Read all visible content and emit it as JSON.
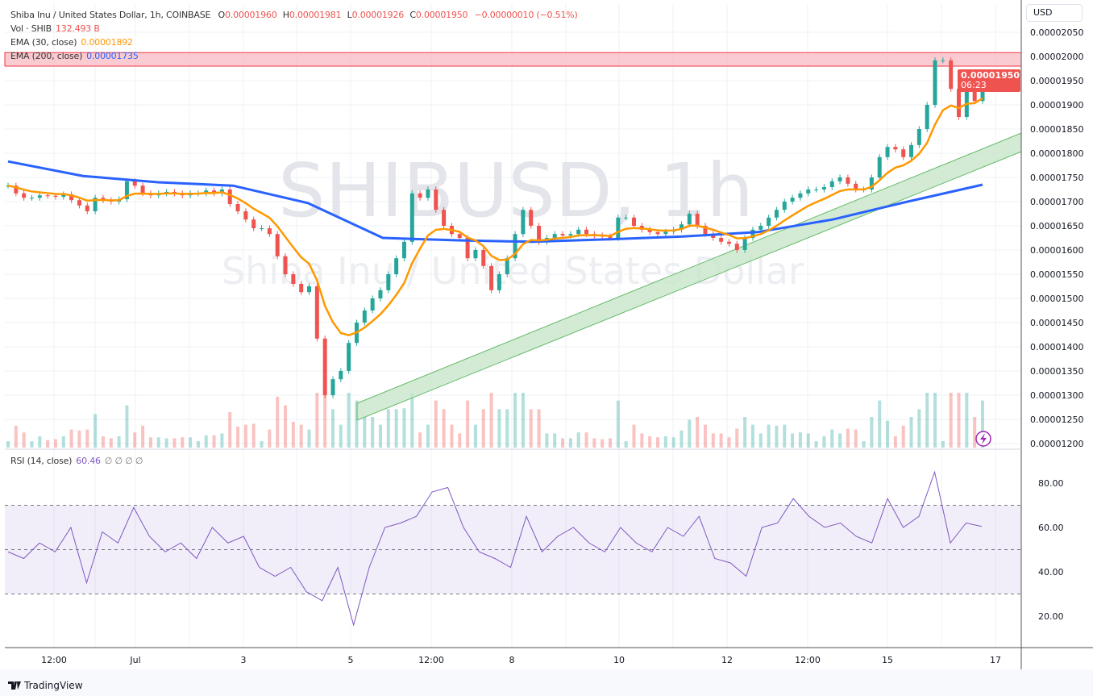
{
  "header": {
    "symbol_line": "Shiba Inu / United States Dollar, 1h, COINBASE",
    "open_label": "O",
    "open": "0.00001960",
    "high_label": "H",
    "high": "0.00001981",
    "low_label": "L",
    "low": "0.00001926",
    "close_label": "C",
    "close": "0.00001950",
    "change": "−0.00000010 (−0.51%)",
    "volume_label": "Vol · SHIB",
    "volume": "132.493 B",
    "ema30_label": "EMA (30, close)",
    "ema30_value": "0.00001892",
    "ema200_label": "EMA (200, close)",
    "ema200_value": "0.00001735",
    "rsi_label": "RSI (14, close)",
    "rsi_value": "60.46",
    "rsi_extra": "∅ ∅ ∅ ∅"
  },
  "currency_button": "USD",
  "last_price": {
    "value": "0.00001950",
    "countdown": "06:23"
  },
  "watermark": {
    "line1": "SHIBUSD, 1h",
    "line2": "Shiba Inu / United States Dollar"
  },
  "footer": {
    "brand": "TradingView"
  },
  "icons": {
    "lightning": "lightning-icon",
    "logo": "tradingview-logo"
  },
  "colors": {
    "up": "#26a69a",
    "down": "#ef5350",
    "ema30": "#ff9800",
    "ema200": "#2962ff",
    "rsi": "#7e57c2",
    "resistance_zone": "#f8bbc2",
    "channel": "#c8e6c9"
  },
  "chart_data": [
    {
      "type": "candlestick",
      "title": "Shiba Inu / United States Dollar, 1h, COINBASE",
      "y_ticks": [
        "0.00002050",
        "0.00002000",
        "0.00001950",
        "0.00001900",
        "0.00001850",
        "0.00001800",
        "0.00001750",
        "0.00001700",
        "0.00001650",
        "0.00001600",
        "0.00001550",
        "0.00001500",
        "0.00001450",
        "0.00001400",
        "0.00001350",
        "0.00001300",
        "0.00001250",
        "0.00001200"
      ],
      "ylim": [
        1.2e-05,
        2.06e-05
      ],
      "x_ticks": [
        "12:00",
        "Jul",
        "3",
        "5",
        "12:00",
        "8",
        "10",
        "12",
        "12:00",
        "15",
        "17"
      ],
      "grid": true,
      "close": [
        1.733e-05,
        1.717e-05,
        1.708e-05,
        1.708e-05,
        1.713e-05,
        1.712e-05,
        1.71e-05,
        1.715e-05,
        1.703e-05,
        1.692e-05,
        1.68e-05,
        1.708e-05,
        1.703e-05,
        1.7e-05,
        1.705e-05,
        1.742e-05,
        1.733e-05,
        1.717e-05,
        1.713e-05,
        1.717e-05,
        1.72e-05,
        1.717e-05,
        1.713e-05,
        1.717e-05,
        1.717e-05,
        1.723e-05,
        1.717e-05,
        1.725e-05,
        1.695e-05,
        1.68e-05,
        1.663e-05,
        1.645e-05,
        1.645e-05,
        1.633e-05,
        1.587e-05,
        1.55e-05,
        1.53e-05,
        1.513e-05,
        1.525e-05,
        1.417e-05,
        1.3e-05,
        1.333e-05,
        1.35e-05,
        1.408e-05,
        1.45e-05,
        1.475e-05,
        1.5e-05,
        1.517e-05,
        1.55e-05,
        1.583e-05,
        1.617e-05,
        1.717e-05,
        1.708e-05,
        1.725e-05,
        1.683e-05,
        1.65e-05,
        1.633e-05,
        1.625e-05,
        1.583e-05,
        1.6e-05,
        1.567e-05,
        1.517e-05,
        1.55e-05,
        1.583e-05,
        1.633e-05,
        1.683e-05,
        1.65e-05,
        1.617e-05,
        1.625e-05,
        1.633e-05,
        1.63e-05,
        1.633e-05,
        1.642e-05,
        1.633e-05,
        1.63e-05,
        1.628e-05,
        1.625e-05,
        1.667e-05,
        1.667e-05,
        1.65e-05,
        1.642e-05,
        1.637e-05,
        1.633e-05,
        1.638e-05,
        1.642e-05,
        1.653e-05,
        1.675e-05,
        1.65e-05,
        1.633e-05,
        1.625e-05,
        1.617e-05,
        1.613e-05,
        1.6e-05,
        1.625e-05,
        1.642e-05,
        1.65e-05,
        1.667e-05,
        1.683e-05,
        1.7e-05,
        1.708e-05,
        1.717e-05,
        1.725e-05,
        1.725e-05,
        1.73e-05,
        1.742e-05,
        1.75e-05,
        1.737e-05,
        1.725e-05,
        1.725e-05,
        1.75e-05,
        1.792e-05,
        1.813e-05,
        1.808e-05,
        1.792e-05,
        1.817e-05,
        1.85e-05,
        1.9e-05,
        1.992e-05,
        1.992e-05,
        1.933e-05,
        1.875e-05,
        1.933e-05,
        1.908e-05,
        1.95e-05
      ],
      "ema200": [
        1.783e-05,
        1.753e-05,
        1.74e-05,
        1.733e-05,
        1.697e-05,
        1.625e-05,
        1.62e-05,
        1.617e-05,
        1.622e-05,
        1.628e-05,
        1.637e-05,
        1.663e-05,
        1.7e-05,
        1.735e-05
      ],
      "resistance_zone": [
        1.98e-05,
        2.008e-05
      ]
    },
    {
      "type": "line",
      "title": "RSI (14, close)",
      "y_ticks": [
        "80.00",
        "60.00",
        "40.00",
        "20.00"
      ],
      "ylim": [
        5,
        94
      ],
      "bands": [
        30,
        50,
        70
      ],
      "values": [
        49,
        46,
        53,
        49,
        60,
        35,
        58,
        53,
        69,
        56,
        49,
        53,
        46,
        60,
        53,
        56,
        42,
        38,
        42,
        31,
        27,
        42,
        16,
        42,
        60,
        62,
        65,
        76,
        78,
        60,
        49,
        46,
        42,
        65,
        49,
        56,
        60,
        53,
        49,
        60,
        53,
        49,
        60,
        56,
        65,
        46,
        44,
        38,
        60,
        62,
        73,
        65,
        60,
        62,
        56,
        53,
        73,
        60,
        65,
        85,
        53,
        62,
        60.46
      ]
    }
  ]
}
